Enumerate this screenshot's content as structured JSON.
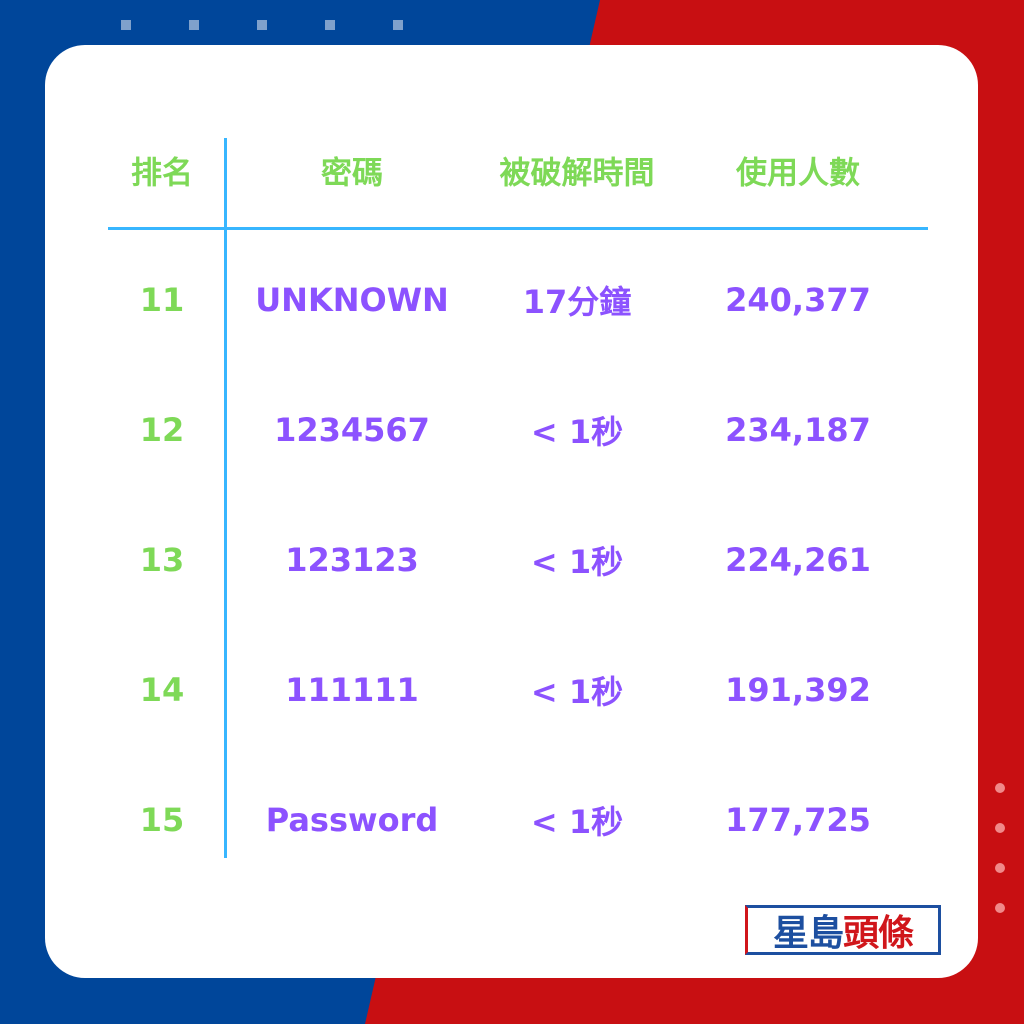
{
  "colors": {
    "blue": "#00469a",
    "red": "#c80f12",
    "header_text": "#7ed957",
    "value_text": "#8c52ff",
    "lines": "#38b6ff"
  },
  "table": {
    "headers": [
      "排名",
      "密碼",
      "被破解時間",
      "使用人數"
    ],
    "rows": [
      {
        "rank": "11",
        "password": "UNKNOWN",
        "time": "17分鐘",
        "users": "240,377"
      },
      {
        "rank": "12",
        "password": "1234567",
        "time": "< 1秒",
        "users": "234,187"
      },
      {
        "rank": "13",
        "password": "123123",
        "time": "< 1秒",
        "users": "224,261"
      },
      {
        "rank": "14",
        "password": "111111",
        "time": "< 1秒",
        "users": "191,392"
      },
      {
        "rank": "15",
        "password": "Password",
        "time": "< 1秒",
        "users": "177,725"
      }
    ]
  },
  "logo": {
    "part1": "星島",
    "part2": "頭條"
  }
}
